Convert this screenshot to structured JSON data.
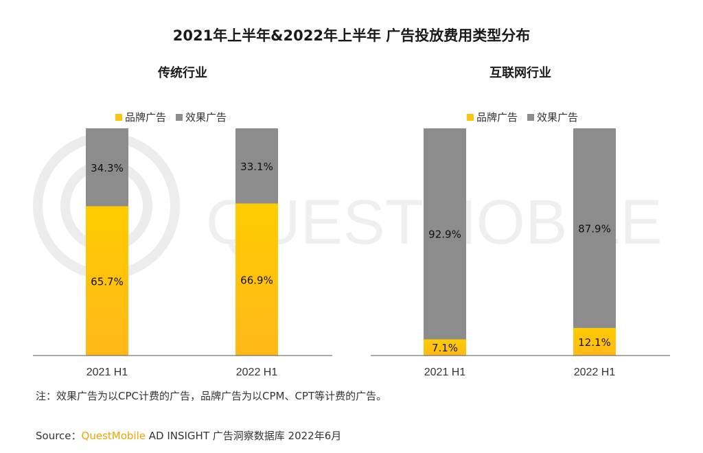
{
  "title": "2021年上半年&2022年上半年 广告投放费用类型分布",
  "colors": {
    "brand": "#FFC20E",
    "performance": "#8C8C8C",
    "axis": "#555555"
  },
  "charts": [
    {
      "subtitle": "传统行业",
      "legend": [
        "品牌广告",
        "效果广告"
      ]
    },
    {
      "subtitle": "互联网行业",
      "legend": [
        "品牌广告",
        "效果广告"
      ]
    }
  ],
  "chart_data": [
    {
      "type": "bar",
      "stacked": true,
      "title": "传统行业",
      "categories": [
        "2021 H1",
        "2022 H1"
      ],
      "series": [
        {
          "name": "品牌广告",
          "values": [
            65.7,
            66.9
          ],
          "labels": [
            "65.7%",
            "66.9%"
          ]
        },
        {
          "name": "效果广告",
          "values": [
            34.3,
            33.1
          ],
          "labels": [
            "34.3%",
            "33.1%"
          ]
        }
      ],
      "ylim": [
        0,
        100
      ],
      "legend_position": "top"
    },
    {
      "type": "bar",
      "stacked": true,
      "title": "互联网行业",
      "categories": [
        "2021 H1",
        "2022 H1"
      ],
      "series": [
        {
          "name": "品牌广告",
          "values": [
            7.1,
            12.1
          ],
          "labels": [
            "7.1%",
            "12.1%"
          ]
        },
        {
          "name": "效果广告",
          "values": [
            92.9,
            87.9
          ],
          "labels": [
            "92.9%",
            "87.9%"
          ]
        }
      ],
      "ylim": [
        0,
        100
      ],
      "legend_position": "top"
    }
  ],
  "note": "注：效果广告为以CPC计费的广告，品牌广告为以CPM、CPT等计费的广告。",
  "source": {
    "prefix": "Source：",
    "brand": "QuestMobile",
    "rest": " AD INSIGHT 广告洞察数据库 2022年6月"
  },
  "watermark": "QUESTMOBILE"
}
